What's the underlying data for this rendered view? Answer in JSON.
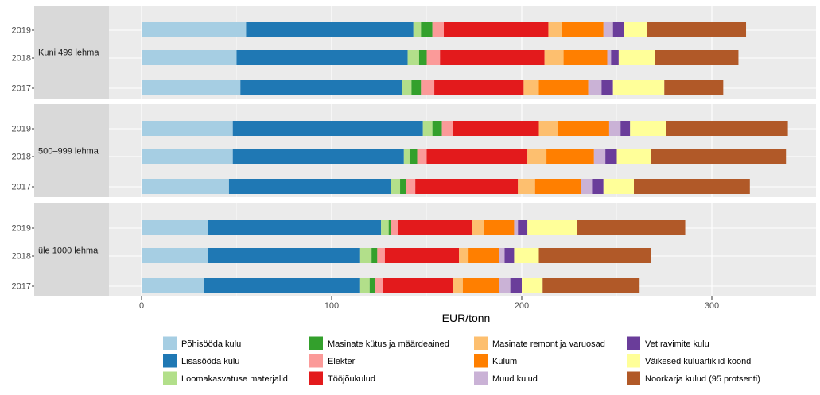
{
  "chart_data": {
    "type": "bar",
    "orientation": "horizontal",
    "stacked": true,
    "xlabel": "EUR/tonn",
    "xlim": [
      -17,
      345
    ],
    "xticks": [
      0,
      100,
      200,
      300
    ],
    "grid": true,
    "legend_position": "bottom",
    "categories": [
      {
        "name": "Põhisööda kulu",
        "color": "#A6CEE3"
      },
      {
        "name": "Lisasööda kulu",
        "color": "#1F78B4"
      },
      {
        "name": "Loomakasvatuse materjalid",
        "color": "#B2DF8A"
      },
      {
        "name": "Masinate kütus ja määrdeained",
        "color": "#33A02C"
      },
      {
        "name": "Elekter",
        "color": "#FB9A99"
      },
      {
        "name": "Tööjõukulud",
        "color": "#E31A1C"
      },
      {
        "name": "Masinate remont ja varuosad",
        "color": "#FDBF6F"
      },
      {
        "name": "Kulum",
        "color": "#FF7F00"
      },
      {
        "name": "Muud kulud",
        "color": "#CAB2D6"
      },
      {
        "name": "Vet ravimite kulu",
        "color": "#6A3D9A"
      },
      {
        "name": "Väikesed kuluartiklid koond",
        "color": "#FFFF99"
      },
      {
        "name": "Noorkarja kulud (95 protsenti)",
        "color": "#B15928"
      }
    ],
    "panels": [
      {
        "label": "Kuni 499 lehma",
        "rows": [
          {
            "year": "2019",
            "values": [
              55,
              88,
              4,
              6,
              6,
              55,
              7,
              22,
              5,
              6,
              12,
              52
            ]
          },
          {
            "year": "2018",
            "values": [
              50,
              90,
              6,
              4,
              7,
              55,
              10,
              23,
              2,
              4,
              19,
              44
            ]
          },
          {
            "year": "2017",
            "values": [
              52,
              85,
              5,
              5,
              7,
              47,
              8,
              26,
              7,
              6,
              27,
              31
            ]
          }
        ]
      },
      {
        "label": "500–999 lehma",
        "rows": [
          {
            "year": "2019",
            "values": [
              48,
              100,
              5,
              5,
              6,
              45,
              10,
              27,
              6,
              5,
              19,
              64
            ]
          },
          {
            "year": "2018",
            "values": [
              48,
              90,
              3,
              4,
              5,
              53,
              10,
              25,
              6,
              6,
              18,
              71
            ]
          },
          {
            "year": "2017",
            "values": [
              46,
              85,
              5,
              3,
              5,
              54,
              9,
              24,
              6,
              6,
              16,
              61
            ]
          }
        ]
      },
      {
        "label": "üle 1000 lehma",
        "rows": [
          {
            "year": "2019",
            "values": [
              35,
              91,
              4,
              1,
              4,
              39,
              6,
              16,
              2,
              5,
              26,
              57
            ]
          },
          {
            "year": "2018",
            "values": [
              35,
              80,
              6,
              3,
              4,
              39,
              5,
              16,
              3,
              5,
              13,
              59
            ]
          },
          {
            "year": "2017",
            "values": [
              33,
              82,
              5,
              3,
              4,
              37,
              5,
              19,
              6,
              6,
              11,
              51
            ]
          }
        ]
      }
    ]
  }
}
